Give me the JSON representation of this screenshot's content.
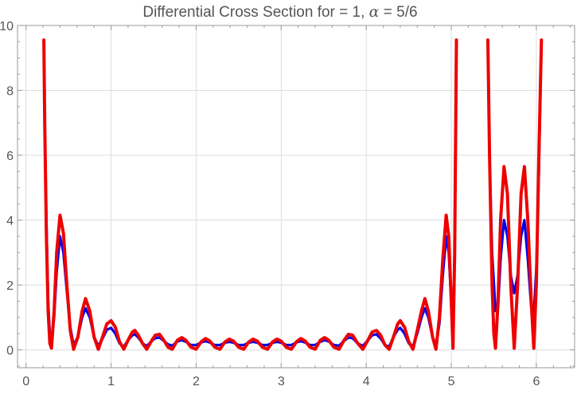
{
  "chart_data": {
    "type": "line",
    "title": {
      "prefix": "Differential Cross Section for  = 1, ",
      "alpha_symbol": "α",
      "suffix": " = 5/6"
    },
    "xlabel": "",
    "ylabel": "",
    "xlim": [
      -0.1,
      6.45
    ],
    "ylim": [
      -0.55,
      10.0
    ],
    "x_ticks": [
      0,
      1,
      2,
      3,
      4,
      5,
      6
    ],
    "y_ticks": [
      0,
      2,
      4,
      6,
      8,
      10
    ],
    "grid": true,
    "clip_y_max": 9.55,
    "colors": {
      "axis": "#999999",
      "grid": "#dddddd",
      "text": "#555555"
    },
    "series": [
      {
        "color": "#0000ee",
        "points": [
          [
            0.21,
            9.55
          ],
          [
            0.22,
            7.0
          ],
          [
            0.24,
            4.0
          ],
          [
            0.26,
            1.5
          ],
          [
            0.28,
            0.5
          ],
          [
            0.3,
            0.3
          ],
          [
            0.33,
            1.0
          ],
          [
            0.36,
            2.4
          ],
          [
            0.4,
            3.5
          ],
          [
            0.44,
            3.0
          ],
          [
            0.48,
            1.8
          ],
          [
            0.52,
            0.7
          ],
          [
            0.56,
            0.15
          ],
          [
            0.61,
            0.4
          ],
          [
            0.66,
            1.0
          ],
          [
            0.7,
            1.28
          ],
          [
            0.75,
            1.0
          ],
          [
            0.8,
            0.4
          ],
          [
            0.85,
            0.12
          ],
          [
            0.9,
            0.35
          ],
          [
            0.95,
            0.62
          ],
          [
            1.0,
            0.68
          ],
          [
            1.05,
            0.5
          ],
          [
            1.1,
            0.2
          ],
          [
            1.15,
            0.1
          ],
          [
            1.2,
            0.3
          ],
          [
            1.25,
            0.45
          ],
          [
            1.28,
            0.48
          ],
          [
            1.32,
            0.38
          ],
          [
            1.37,
            0.2
          ],
          [
            1.42,
            0.12
          ],
          [
            1.48,
            0.28
          ],
          [
            1.52,
            0.36
          ],
          [
            1.57,
            0.38
          ],
          [
            1.62,
            0.28
          ],
          [
            1.67,
            0.17
          ],
          [
            1.72,
            0.13
          ],
          [
            1.78,
            0.26
          ],
          [
            1.83,
            0.3
          ],
          [
            1.88,
            0.25
          ],
          [
            1.94,
            0.15
          ],
          [
            2.0,
            0.15
          ],
          [
            2.06,
            0.23
          ],
          [
            2.11,
            0.27
          ],
          [
            2.16,
            0.23
          ],
          [
            2.22,
            0.15
          ],
          [
            2.28,
            0.15
          ],
          [
            2.34,
            0.22
          ],
          [
            2.39,
            0.25
          ],
          [
            2.44,
            0.22
          ],
          [
            2.5,
            0.15
          ],
          [
            2.56,
            0.15
          ],
          [
            2.62,
            0.22
          ],
          [
            2.67,
            0.25
          ],
          [
            2.72,
            0.22
          ],
          [
            2.78,
            0.15
          ],
          [
            2.84,
            0.15
          ],
          [
            2.9,
            0.22
          ],
          [
            2.95,
            0.25
          ],
          [
            3.0,
            0.22
          ],
          [
            3.06,
            0.15
          ],
          [
            3.12,
            0.15
          ],
          [
            3.18,
            0.23
          ],
          [
            3.23,
            0.27
          ],
          [
            3.28,
            0.23
          ],
          [
            3.34,
            0.15
          ],
          [
            3.4,
            0.15
          ],
          [
            3.46,
            0.25
          ],
          [
            3.51,
            0.3
          ],
          [
            3.56,
            0.26
          ],
          [
            3.62,
            0.15
          ],
          [
            3.68,
            0.13
          ],
          [
            3.74,
            0.28
          ],
          [
            3.79,
            0.38
          ],
          [
            3.84,
            0.36
          ],
          [
            3.9,
            0.2
          ],
          [
            3.96,
            0.12
          ],
          [
            4.02,
            0.3
          ],
          [
            4.07,
            0.45
          ],
          [
            4.12,
            0.48
          ],
          [
            4.17,
            0.35
          ],
          [
            4.22,
            0.15
          ],
          [
            4.27,
            0.1
          ],
          [
            4.32,
            0.4
          ],
          [
            4.37,
            0.62
          ],
          [
            4.4,
            0.68
          ],
          [
            4.45,
            0.5
          ],
          [
            4.5,
            0.2
          ],
          [
            4.55,
            0.12
          ],
          [
            4.6,
            0.5
          ],
          [
            4.65,
            1.0
          ],
          [
            4.69,
            1.28
          ],
          [
            4.73,
            1.0
          ],
          [
            4.78,
            0.4
          ],
          [
            4.82,
            0.15
          ],
          [
            4.86,
            0.8
          ],
          [
            4.9,
            2.3
          ],
          [
            4.94,
            3.5
          ],
          [
            4.97,
            3.0
          ],
          [
            5.0,
            1.5
          ],
          [
            5.02,
            0.3
          ],
          [
            5.04,
            3.0
          ],
          [
            5.06,
            9.55
          ],
          [
            5.43,
            9.55
          ],
          [
            5.45,
            6.0
          ],
          [
            5.48,
            3.0
          ],
          [
            5.52,
            1.2
          ],
          [
            5.55,
            1.3
          ],
          [
            5.58,
            2.8
          ],
          [
            5.62,
            4.0
          ],
          [
            5.66,
            3.5
          ],
          [
            5.7,
            2.3
          ],
          [
            5.74,
            1.75
          ],
          [
            5.78,
            2.3
          ],
          [
            5.82,
            3.5
          ],
          [
            5.86,
            4.0
          ],
          [
            5.9,
            2.8
          ],
          [
            5.94,
            1.3
          ],
          [
            5.97,
            1.1
          ],
          [
            6.0,
            2.5
          ],
          [
            6.03,
            5.5
          ],
          [
            6.06,
            9.55
          ]
        ]
      },
      {
        "color": "#ee0000",
        "points": [
          [
            0.21,
            9.55
          ],
          [
            0.22,
            7.0
          ],
          [
            0.24,
            3.5
          ],
          [
            0.26,
            1.2
          ],
          [
            0.28,
            0.2
          ],
          [
            0.3,
            0.05
          ],
          [
            0.33,
            1.2
          ],
          [
            0.36,
            3.0
          ],
          [
            0.4,
            4.15
          ],
          [
            0.44,
            3.6
          ],
          [
            0.48,
            2.0
          ],
          [
            0.52,
            0.6
          ],
          [
            0.56,
            0.02
          ],
          [
            0.61,
            0.4
          ],
          [
            0.66,
            1.2
          ],
          [
            0.7,
            1.58
          ],
          [
            0.75,
            1.2
          ],
          [
            0.8,
            0.4
          ],
          [
            0.85,
            0.02
          ],
          [
            0.9,
            0.4
          ],
          [
            0.95,
            0.8
          ],
          [
            1.0,
            0.9
          ],
          [
            1.05,
            0.7
          ],
          [
            1.1,
            0.25
          ],
          [
            1.15,
            0.02
          ],
          [
            1.2,
            0.3
          ],
          [
            1.25,
            0.55
          ],
          [
            1.28,
            0.6
          ],
          [
            1.32,
            0.45
          ],
          [
            1.37,
            0.2
          ],
          [
            1.42,
            0.02
          ],
          [
            1.48,
            0.3
          ],
          [
            1.52,
            0.45
          ],
          [
            1.57,
            0.48
          ],
          [
            1.62,
            0.3
          ],
          [
            1.67,
            0.08
          ],
          [
            1.72,
            0.02
          ],
          [
            1.78,
            0.3
          ],
          [
            1.83,
            0.38
          ],
          [
            1.88,
            0.3
          ],
          [
            1.94,
            0.08
          ],
          [
            2.0,
            0.02
          ],
          [
            2.06,
            0.25
          ],
          [
            2.11,
            0.35
          ],
          [
            2.16,
            0.28
          ],
          [
            2.22,
            0.08
          ],
          [
            2.28,
            0.02
          ],
          [
            2.34,
            0.25
          ],
          [
            2.39,
            0.33
          ],
          [
            2.44,
            0.27
          ],
          [
            2.5,
            0.08
          ],
          [
            2.56,
            0.02
          ],
          [
            2.62,
            0.25
          ],
          [
            2.67,
            0.33
          ],
          [
            2.72,
            0.27
          ],
          [
            2.78,
            0.08
          ],
          [
            2.84,
            0.02
          ],
          [
            2.9,
            0.25
          ],
          [
            2.95,
            0.33
          ],
          [
            3.0,
            0.27
          ],
          [
            3.06,
            0.08
          ],
          [
            3.12,
            0.02
          ],
          [
            3.18,
            0.25
          ],
          [
            3.23,
            0.35
          ],
          [
            3.28,
            0.28
          ],
          [
            3.34,
            0.08
          ],
          [
            3.4,
            0.02
          ],
          [
            3.46,
            0.3
          ],
          [
            3.51,
            0.38
          ],
          [
            3.56,
            0.3
          ],
          [
            3.62,
            0.08
          ],
          [
            3.68,
            0.02
          ],
          [
            3.74,
            0.3
          ],
          [
            3.79,
            0.48
          ],
          [
            3.84,
            0.45
          ],
          [
            3.9,
            0.2
          ],
          [
            3.96,
            0.02
          ],
          [
            4.02,
            0.3
          ],
          [
            4.07,
            0.55
          ],
          [
            4.12,
            0.6
          ],
          [
            4.17,
            0.45
          ],
          [
            4.22,
            0.15
          ],
          [
            4.27,
            0.02
          ],
          [
            4.32,
            0.4
          ],
          [
            4.37,
            0.8
          ],
          [
            4.4,
            0.9
          ],
          [
            4.45,
            0.7
          ],
          [
            4.5,
            0.25
          ],
          [
            4.55,
            0.02
          ],
          [
            4.6,
            0.6
          ],
          [
            4.65,
            1.2
          ],
          [
            4.69,
            1.58
          ],
          [
            4.73,
            1.2
          ],
          [
            4.78,
            0.4
          ],
          [
            4.82,
            0.02
          ],
          [
            4.86,
            1.0
          ],
          [
            4.9,
            2.8
          ],
          [
            4.94,
            4.15
          ],
          [
            4.97,
            3.5
          ],
          [
            5.0,
            1.5
          ],
          [
            5.02,
            0.05
          ],
          [
            5.04,
            3.0
          ],
          [
            5.06,
            9.55
          ],
          [
            5.43,
            9.55
          ],
          [
            5.45,
            6.0
          ],
          [
            5.48,
            2.0
          ],
          [
            5.5,
            0.5
          ],
          [
            5.52,
            0.05
          ],
          [
            5.55,
            1.5
          ],
          [
            5.58,
            4.0
          ],
          [
            5.62,
            5.65
          ],
          [
            5.66,
            4.8
          ],
          [
            5.7,
            2.0
          ],
          [
            5.74,
            0.05
          ],
          [
            5.78,
            2.0
          ],
          [
            5.82,
            4.8
          ],
          [
            5.86,
            5.65
          ],
          [
            5.9,
            4.0
          ],
          [
            5.94,
            1.5
          ],
          [
            5.97,
            0.05
          ],
          [
            6.0,
            2.0
          ],
          [
            6.03,
            6.0
          ],
          [
            6.06,
            9.55
          ]
        ]
      }
    ]
  }
}
